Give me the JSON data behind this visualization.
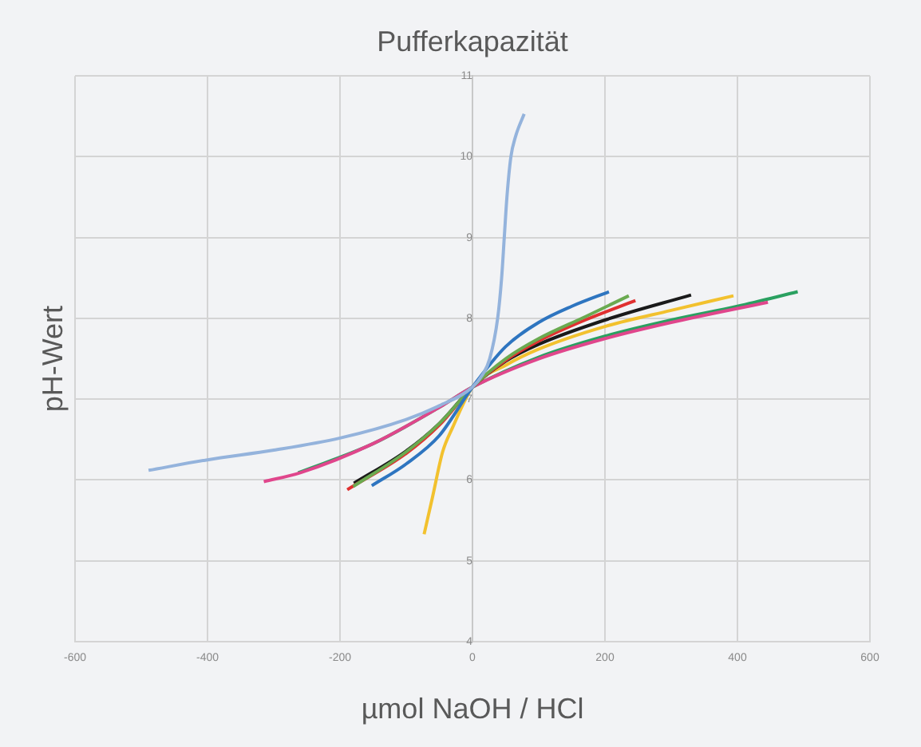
{
  "chart_data": {
    "type": "line",
    "title": "Pufferkapazität",
    "xlabel": "µmol NaOH / HCl",
    "ylabel": "pH-Wert",
    "xlim": [
      -600,
      600
    ],
    "xticks": [
      -600,
      -400,
      -200,
      0,
      200,
      400,
      600
    ],
    "ylim": [
      4,
      11
    ],
    "yticks": [
      4,
      5,
      6,
      7,
      8,
      9,
      10,
      11
    ],
    "grid": true,
    "legend": false,
    "marker": "none",
    "line_style": "solid",
    "series": [
      {
        "color": "#94b3dc",
        "x": [
          -489,
          -400,
          -300,
          -200,
          -100,
          -50,
          0,
          15,
          26,
          38,
          44,
          48,
          52,
          58,
          65,
          78
        ],
        "values": [
          6.12,
          6.25,
          6.37,
          6.52,
          6.75,
          6.92,
          7.15,
          7.3,
          7.5,
          8.0,
          8.5,
          9.0,
          9.5,
          10.0,
          10.25,
          10.53
        ]
      },
      {
        "color": "#2e75c0",
        "x": [
          -152,
          -100,
          -50,
          0,
          50,
          100,
          150,
          206
        ],
        "values": [
          5.93,
          6.2,
          6.55,
          7.15,
          7.65,
          7.95,
          8.15,
          8.33
        ]
      },
      {
        "color": "#6aaa50",
        "x": [
          -180,
          -100,
          -50,
          0,
          50,
          100,
          170,
          236
        ],
        "values": [
          5.92,
          6.35,
          6.7,
          7.15,
          7.5,
          7.75,
          8.02,
          8.28
        ]
      },
      {
        "color": "#e03030",
        "x": [
          -189,
          -100,
          -50,
          0,
          50,
          100,
          170,
          246
        ],
        "values": [
          5.88,
          6.33,
          6.68,
          7.15,
          7.48,
          7.72,
          7.98,
          8.22
        ]
      },
      {
        "color": "#1a1a1a",
        "x": [
          -179,
          -100,
          -50,
          0,
          50,
          100,
          200,
          330
        ],
        "values": [
          5.96,
          6.36,
          6.7,
          7.15,
          7.47,
          7.68,
          7.98,
          8.29
        ]
      },
      {
        "color": "#f2c12e",
        "x": [
          -73,
          -60,
          -45,
          -30,
          0,
          50,
          100,
          200,
          300,
          394
        ],
        "values": [
          5.33,
          5.8,
          6.35,
          6.65,
          7.15,
          7.42,
          7.62,
          7.9,
          8.1,
          8.28
        ]
      },
      {
        "color": "#e0468c",
        "x": [
          -315,
          -260,
          -150,
          -50,
          0,
          100,
          200,
          300,
          446
        ],
        "values": [
          5.98,
          6.09,
          6.45,
          6.9,
          7.15,
          7.5,
          7.75,
          7.95,
          8.2
        ]
      },
      {
        "color": "#2aa060",
        "x": [
          -263,
          -150,
          -50,
          0,
          100,
          200,
          300,
          400,
          491
        ],
        "values": [
          6.09,
          6.45,
          6.9,
          7.15,
          7.52,
          7.78,
          7.98,
          8.15,
          8.33
        ]
      }
    ]
  }
}
